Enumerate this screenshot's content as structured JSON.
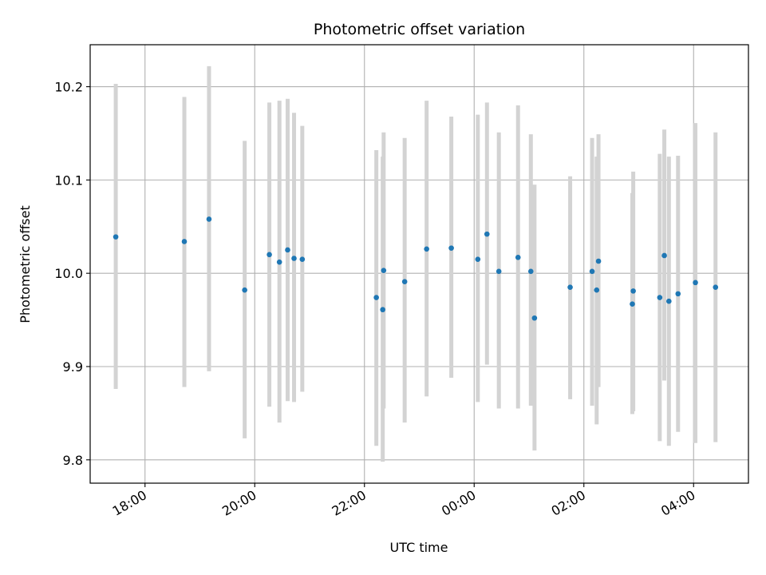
{
  "chart_data": {
    "type": "scatter",
    "title": "Photometric offset variation",
    "xlabel": "UTC time",
    "ylabel": "Photometric offset",
    "x_axis_kind": "time",
    "xlim": [
      "17:00",
      "05:00"
    ],
    "ylim": [
      9.775,
      10.245
    ],
    "grid": true,
    "x_ticks": [
      "18:00",
      "20:00",
      "22:00",
      "00:00",
      "02:00",
      "04:00"
    ],
    "y_ticks": [
      "9.8",
      "9.9",
      "10.0",
      "10.1",
      "10.2"
    ],
    "colors": {
      "marker": "#1f77b4",
      "errorbar": "#d3d3d3",
      "grid": "#b0b0b0"
    },
    "series": [
      {
        "x": [
          "17:28",
          "18:43",
          "19:10",
          "19:49",
          "20:16",
          "20:27",
          "20:36",
          "20:43",
          "20:52",
          "22:13",
          "22:20",
          "22:21",
          "22:44",
          "23:08",
          "23:35",
          "00:04",
          "00:14",
          "00:27",
          "00:48",
          "01:02",
          "01:06",
          "01:45",
          "02:09",
          "02:14",
          "02:16",
          "02:53",
          "02:54",
          "03:23",
          "03:28",
          "03:33",
          "03:43",
          "04:02",
          "04:24"
        ],
        "y": [
          10.039,
          10.034,
          10.058,
          9.982,
          10.02,
          10.012,
          10.025,
          10.016,
          10.015,
          9.974,
          9.961,
          10.003,
          9.991,
          10.026,
          10.027,
          10.015,
          10.042,
          10.002,
          10.017,
          10.002,
          9.952,
          9.985,
          10.002,
          9.982,
          10.013,
          9.967,
          9.981,
          9.974,
          10.019,
          9.97,
          9.978,
          9.99,
          9.985
        ],
        "y_low": [
          9.876,
          9.878,
          9.895,
          9.823,
          9.857,
          9.84,
          9.863,
          9.862,
          9.873,
          9.815,
          9.798,
          9.855,
          9.84,
          9.868,
          9.888,
          9.862,
          9.902,
          9.855,
          9.855,
          9.858,
          9.81,
          9.865,
          9.858,
          9.838,
          9.878,
          9.849,
          9.852,
          9.82,
          9.885,
          9.815,
          9.83,
          9.818,
          9.819
        ],
        "y_high": [
          10.203,
          10.189,
          10.222,
          10.142,
          10.183,
          10.185,
          10.187,
          10.172,
          10.158,
          10.132,
          10.125,
          10.151,
          10.145,
          10.185,
          10.168,
          10.17,
          10.183,
          10.151,
          10.18,
          10.149,
          10.095,
          10.104,
          10.145,
          10.125,
          10.149,
          10.086,
          10.109,
          10.128,
          10.154,
          10.125,
          10.126,
          10.161,
          10.151
        ]
      }
    ]
  }
}
